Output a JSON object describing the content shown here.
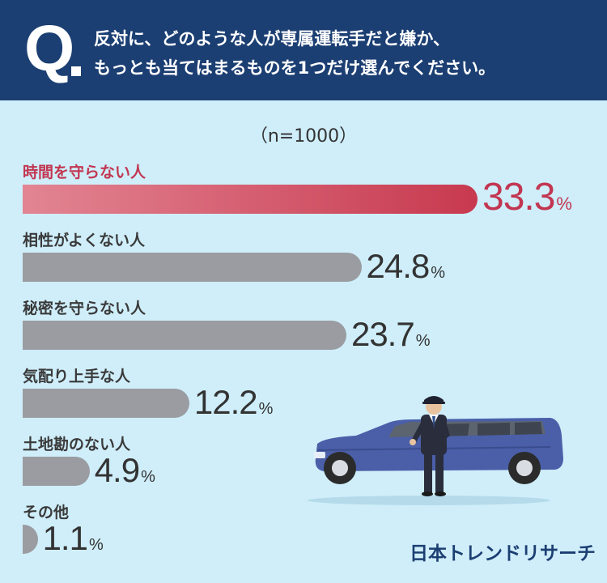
{
  "question": {
    "marker": "Q",
    "line1": "反対に、どのような人が専属運転手だと嫌か、",
    "line2": "もっとも当てはまるものを1つだけ選んでください。"
  },
  "sample_label": "（n=1000）",
  "logo": "日本トレンドリサーチ",
  "colors": {
    "header": "#1c3f73",
    "background": "#cfeefa",
    "highlight": "#c23651",
    "bar": "#9a9ca1"
  },
  "chart_data": {
    "type": "bar",
    "orientation": "horizontal",
    "title": "",
    "xlabel": "",
    "ylabel": "",
    "unit": "%",
    "xlim": [
      0,
      33.3
    ],
    "grid": false,
    "categories": [
      "時間を守らない人",
      "相性がよくない人",
      "秘密を守らない人",
      "気配り上手な人",
      "土地勘のない人",
      "その他"
    ],
    "values": [
      33.3,
      24.8,
      23.7,
      12.2,
      4.9,
      1.1
    ],
    "highlight_index": 0
  }
}
